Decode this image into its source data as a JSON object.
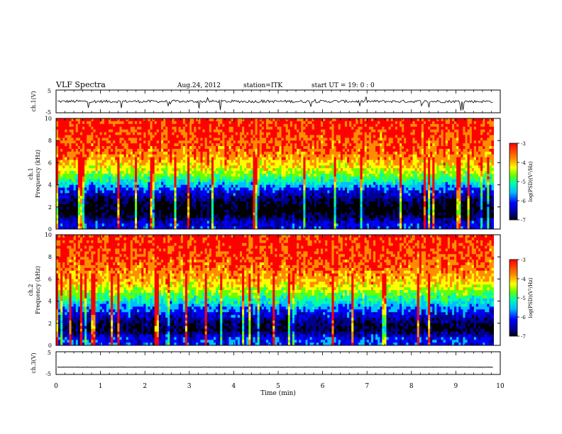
{
  "header": {
    "title": "VLF Spectra",
    "date": "Aug.24, 2012",
    "station": "station=ITK",
    "start": "start UT =   19: 0  : 0"
  },
  "chart_data": [
    {
      "type": "line",
      "panel": "ch1-waveform",
      "ylabel": "ch.1(V)",
      "ylim": [
        -5,
        5
      ],
      "yticks": [
        "5",
        "-5"
      ],
      "xlim": [
        0,
        10
      ],
      "baseline": 0,
      "noise_spread": 1.2,
      "color": "#000000"
    },
    {
      "type": "heatmap",
      "panel": "ch1-spectrogram",
      "ylabel": "ch.1\nFrequency (kHz)",
      "ylabel_lines": [
        "ch.1",
        "Frequency (kHz)"
      ],
      "yticks": [
        "0",
        "2",
        "4",
        "6",
        "8",
        "10"
      ],
      "ylim": [
        0,
        10
      ],
      "xlim": [
        0,
        9.85
      ],
      "colorbar": {
        "label": "log(PSD)(V²/Hz)",
        "ticks": [
          "-3",
          "-4",
          "-5",
          "-6",
          "-7"
        ],
        "range": [
          -7,
          -3
        ]
      },
      "levels_by_khz": [
        {
          "khz": 0.5,
          "log_psd": -6.0
        },
        {
          "khz": 1.5,
          "log_psd": -6.9
        },
        {
          "khz": 2.5,
          "log_psd": -6.6
        },
        {
          "khz": 3.5,
          "log_psd": -5.9
        },
        {
          "khz": 4.5,
          "log_psd": -4.9
        },
        {
          "khz": 5.5,
          "log_psd": -4.1
        },
        {
          "khz": 7.0,
          "log_psd": -3.5
        },
        {
          "khz": 9.0,
          "log_psd": -3.3
        }
      ]
    },
    {
      "type": "heatmap",
      "panel": "ch2-spectrogram",
      "ylabel": "ch.2\nFrequency (kHz)",
      "ylabel_lines": [
        "ch.2",
        "Frequency (kHz)"
      ],
      "yticks": [
        "0",
        "2",
        "4",
        "6",
        "8",
        "10"
      ],
      "ylim": [
        0,
        10
      ],
      "xlim": [
        0,
        9.85
      ],
      "colorbar": {
        "label": "log(PSD)(V²/Hz)",
        "ticks": [
          "-3",
          "-4",
          "-5",
          "-6",
          "-7"
        ],
        "range": [
          -7,
          -3
        ]
      },
      "levels_by_khz": [
        {
          "khz": 0.5,
          "log_psd": -5.8
        },
        {
          "khz": 1.5,
          "log_psd": -6.7
        },
        {
          "khz": 2.5,
          "log_psd": -6.2
        },
        {
          "khz": 3.5,
          "log_psd": -5.5
        },
        {
          "khz": 4.5,
          "log_psd": -4.7
        },
        {
          "khz": 5.5,
          "log_psd": -4.0
        },
        {
          "khz": 7.0,
          "log_psd": -3.5
        },
        {
          "khz": 9.0,
          "log_psd": -3.3
        }
      ]
    },
    {
      "type": "line",
      "panel": "ch3-waveform",
      "ylabel": "ch.3(V)",
      "ylim": [
        -5,
        5
      ],
      "yticks": [
        "5",
        "-5"
      ],
      "xlim": [
        0,
        10
      ],
      "baseline": -1.8,
      "noise_spread": 0.1,
      "color": "#000000"
    }
  ],
  "xaxis": {
    "label": "Time (min)",
    "ticks": [
      "0",
      "1",
      "2",
      "3",
      "4",
      "5",
      "6",
      "7",
      "8",
      "9",
      "10"
    ],
    "range": [
      0,
      10
    ]
  },
  "colors": {
    "colormap": [
      "#000000",
      "#00008b",
      "#0000ff",
      "#00bfff",
      "#00ffaa",
      "#66ff00",
      "#ffff00",
      "#ff8c00",
      "#ff0000"
    ],
    "axis": "#000000",
    "background": "#ffffff"
  }
}
